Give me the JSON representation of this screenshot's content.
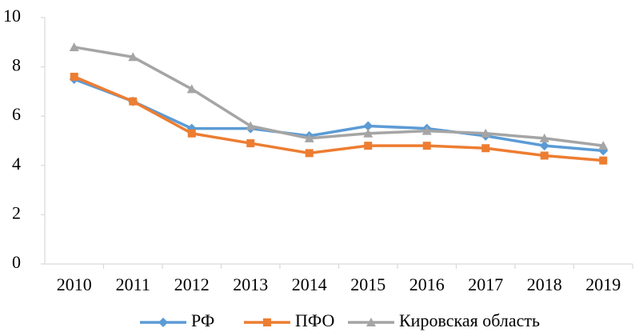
{
  "chart_data": {
    "type": "line",
    "categories": [
      "2010",
      "2011",
      "2012",
      "2013",
      "2014",
      "2015",
      "2016",
      "2017",
      "2018",
      "2019"
    ],
    "series": [
      {
        "name": "РФ",
        "color": "#5b9bd5",
        "marker": "diamond",
        "values": [
          7.5,
          6.6,
          5.5,
          5.5,
          5.2,
          5.6,
          5.5,
          5.2,
          4.8,
          4.6
        ]
      },
      {
        "name": "ПФО",
        "color": "#ed7d31",
        "marker": "square",
        "values": [
          7.6,
          6.6,
          5.3,
          4.9,
          4.5,
          4.8,
          4.8,
          4.7,
          4.4,
          4.2
        ]
      },
      {
        "name": "Кировская область",
        "color": "#a5a5a5",
        "marker": "triangle",
        "values": [
          8.8,
          8.4,
          7.1,
          5.6,
          5.1,
          5.3,
          5.4,
          5.3,
          5.1,
          4.8
        ]
      }
    ],
    "ylim": [
      0,
      10
    ],
    "yticks": [
      0,
      2,
      4,
      6,
      8,
      10
    ],
    "grid": false,
    "legend": "bottom"
  }
}
